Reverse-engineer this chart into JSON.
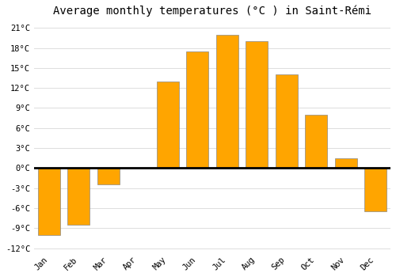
{
  "months": [
    "Jan",
    "Feb",
    "Mar",
    "Apr",
    "May",
    "Jun",
    "Jul",
    "Aug",
    "Sep",
    "Oct",
    "Nov",
    "Dec"
  ],
  "temperatures": [
    -10,
    -8.5,
    -2.5,
    0,
    13,
    17.5,
    20,
    19,
    14,
    8,
    1.5,
    -6.5
  ],
  "bar_color": "#FFA500",
  "bar_edge_color": "#888888",
  "title": "Average monthly temperatures (°C ) in Saint-Rémi",
  "title_fontsize": 10,
  "yticks": [
    -12,
    -9,
    -6,
    -3,
    0,
    3,
    6,
    9,
    12,
    15,
    18,
    21
  ],
  "ylim": [
    -12.5,
    22
  ],
  "bg_color": "#ffffff",
  "grid_color": "#dddddd",
  "zero_line_color": "#000000",
  "bar_width": 0.75
}
